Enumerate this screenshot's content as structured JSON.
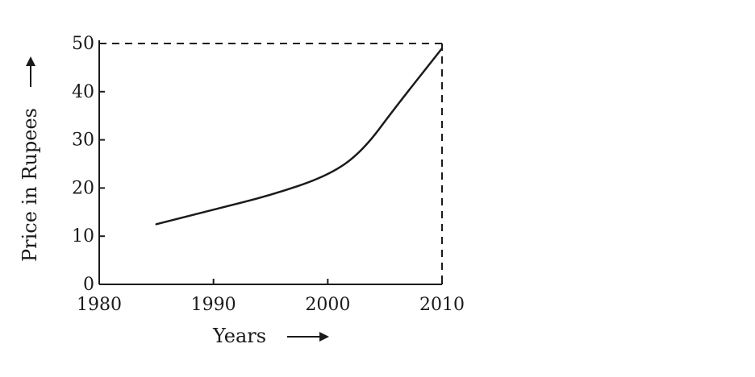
{
  "chart_data": {
    "type": "line",
    "title": "",
    "xlabel": "Years",
    "ylabel": "Price in Rupees",
    "x_ticks": [
      "1980",
      "1990",
      "2000",
      "2010"
    ],
    "y_ticks": [
      "0",
      "10",
      "20",
      "30",
      "40",
      "50"
    ],
    "xlim": [
      1980,
      2010
    ],
    "ylim": [
      0,
      50
    ],
    "grid": false,
    "series": [
      {
        "x": [
          1985,
          1990,
          1995,
          2000,
          2003,
          2006,
          2010
        ],
        "y": [
          12.5,
          15.5,
          18.5,
          22.5,
          27.5,
          37,
          49
        ]
      }
    ],
    "reference_lines": {
      "horizontal_dashed_y": 50,
      "vertical_dashed_x": 2010
    }
  }
}
